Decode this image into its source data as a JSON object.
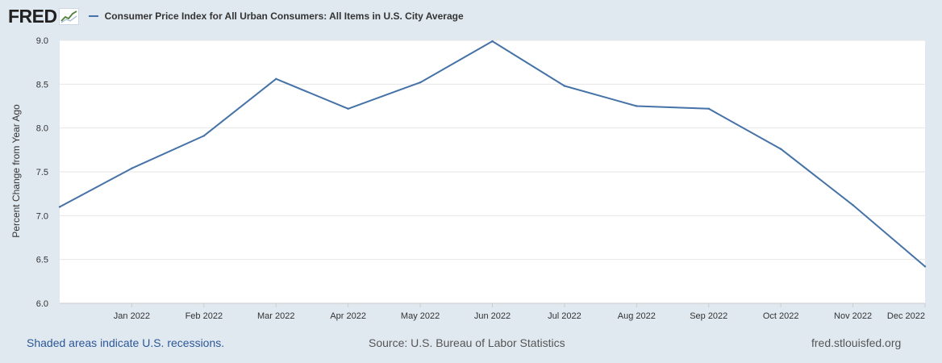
{
  "brand": {
    "logo_text": "FRED",
    "badge_icon": "chart-trend-icon"
  },
  "legend": {
    "label": "Consumer Price Index for All Urban Consumers: All Items in U.S. City Average",
    "color": "#4572a7"
  },
  "footer": {
    "recessions_note": "Shaded areas indicate U.S. recessions.",
    "source": "Source: U.S. Bureau of Labor Statistics",
    "site": "fred.stlouisfed.org"
  },
  "colors": {
    "background": "#e1e9f0",
    "plot_background": "#ffffff",
    "grid": "#e6e6e6",
    "line": "#4572a7"
  },
  "chart_data": {
    "type": "line",
    "title": "",
    "xlabel": "",
    "ylabel": "Percent Change from Year Ago",
    "ylim": [
      6.0,
      9.0
    ],
    "yticks": [
      "6.0",
      "6.5",
      "7.0",
      "7.5",
      "8.0",
      "8.5",
      "9.0"
    ],
    "x": [
      "2021-12",
      "2022-01",
      "2022-02",
      "2022-03",
      "2022-04",
      "2022-05",
      "2022-06",
      "2022-07",
      "2022-08",
      "2022-09",
      "2022-10",
      "2022-11",
      "2022-12"
    ],
    "xtick_labels": [
      "Jan 2022",
      "Feb 2022",
      "Mar 2022",
      "Apr 2022",
      "May 2022",
      "Jun 2022",
      "Jul 2022",
      "Aug 2022",
      "Sep 2022",
      "Oct 2022",
      "Nov 2022",
      "Dec 2022"
    ],
    "grid": true,
    "series": [
      {
        "name": "Consumer Price Index for All Urban Consumers: All Items in U.S. City Average",
        "values": [
          7.1,
          7.54,
          7.91,
          8.56,
          8.22,
          8.52,
          8.99,
          8.48,
          8.25,
          8.22,
          7.76,
          7.12,
          6.42
        ]
      }
    ]
  }
}
